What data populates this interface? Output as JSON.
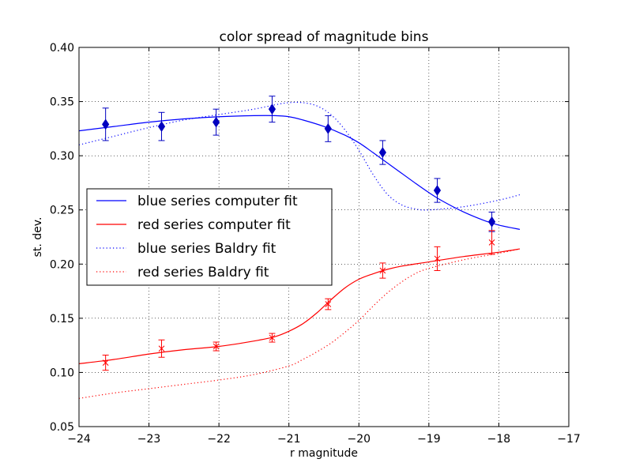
{
  "chart_data": {
    "type": "line",
    "title": "color spread of magnitude bins",
    "xlabel": "r magnitude",
    "ylabel": "st. dev.",
    "xlim": [
      -24,
      -17
    ],
    "ylim": [
      0.05,
      0.4
    ],
    "x_ticks": [
      -24,
      -23,
      -22,
      -21,
      -20,
      -19,
      -18,
      -17
    ],
    "x_tick_labels": [
      "−24",
      "−23",
      "−22",
      "−21",
      "−20",
      "−19",
      "−18",
      "−17"
    ],
    "y_ticks": [
      0.05,
      0.1,
      0.15,
      0.2,
      0.25,
      0.3,
      0.35,
      0.4
    ],
    "y_tick_labels": [
      "0.05",
      "0.10",
      "0.15",
      "0.20",
      "0.25",
      "0.30",
      "0.35",
      "0.40"
    ],
    "grid": true,
    "legend_position": "center-left",
    "colors": {
      "blue": "#0000ff",
      "red": "#ff0000",
      "blue_marker": "#0000c0",
      "red_marker": "#ff0000"
    },
    "series": [
      {
        "name": "blue series computer fit",
        "kind": "line",
        "style": "solid",
        "color": "#0000ff",
        "x": [
          -24.0,
          -23.5,
          -23.0,
          -22.5,
          -22.0,
          -21.5,
          -21.2,
          -21.0,
          -20.8,
          -20.5,
          -20.2,
          -20.0,
          -19.8,
          -19.5,
          -19.2,
          -19.0,
          -18.8,
          -18.5,
          -18.2,
          -18.0,
          -17.7
        ],
        "y": [
          0.323,
          0.327,
          0.331,
          0.334,
          0.336,
          0.337,
          0.337,
          0.336,
          0.333,
          0.327,
          0.319,
          0.312,
          0.303,
          0.289,
          0.275,
          0.266,
          0.258,
          0.248,
          0.24,
          0.236,
          0.232
        ]
      },
      {
        "name": "red series computer fit",
        "kind": "line",
        "style": "solid",
        "color": "#ff0000",
        "x": [
          -24.0,
          -23.5,
          -23.0,
          -22.5,
          -22.0,
          -21.5,
          -21.2,
          -21.0,
          -20.8,
          -20.6,
          -20.4,
          -20.2,
          -20.0,
          -19.8,
          -19.6,
          -19.4,
          -19.0,
          -18.5,
          -18.0,
          -17.7
        ],
        "y": [
          0.108,
          0.112,
          0.117,
          0.121,
          0.124,
          0.129,
          0.133,
          0.138,
          0.145,
          0.155,
          0.167,
          0.178,
          0.186,
          0.191,
          0.195,
          0.198,
          0.202,
          0.207,
          0.211,
          0.214
        ]
      },
      {
        "name": "blue series Baldry fit",
        "kind": "line",
        "style": "dotted",
        "color": "#0000ff",
        "x": [
          -24.0,
          -23.5,
          -23.0,
          -22.5,
          -22.0,
          -21.5,
          -21.2,
          -21.0,
          -20.8,
          -20.6,
          -20.4,
          -20.2,
          -20.0,
          -19.8,
          -19.6,
          -19.4,
          -19.2,
          -19.0,
          -18.5,
          -18.0,
          -17.7
        ],
        "y": [
          0.31,
          0.318,
          0.326,
          0.333,
          0.338,
          0.343,
          0.347,
          0.349,
          0.349,
          0.346,
          0.338,
          0.324,
          0.305,
          0.283,
          0.265,
          0.255,
          0.251,
          0.25,
          0.253,
          0.259,
          0.264
        ]
      },
      {
        "name": "red series Baldry fit",
        "kind": "line",
        "style": "dotted",
        "color": "#ff0000",
        "x": [
          -24.0,
          -23.5,
          -23.0,
          -22.5,
          -22.0,
          -21.5,
          -21.0,
          -20.8,
          -20.6,
          -20.4,
          -20.2,
          -20.0,
          -19.8,
          -19.6,
          -19.4,
          -19.2,
          -19.0,
          -18.5,
          -18.0,
          -17.7
        ],
        "y": [
          0.076,
          0.081,
          0.085,
          0.089,
          0.093,
          0.098,
          0.106,
          0.112,
          0.119,
          0.127,
          0.137,
          0.148,
          0.161,
          0.173,
          0.183,
          0.191,
          0.196,
          0.204,
          0.21,
          0.214
        ]
      },
      {
        "name": "blue data",
        "kind": "errorbar",
        "marker": "diamond",
        "color": "#0000c0",
        "x": [
          -23.62,
          -22.82,
          -22.04,
          -21.24,
          -20.44,
          -19.66,
          -18.88,
          -18.1
        ],
        "y": [
          0.329,
          0.327,
          0.331,
          0.343,
          0.325,
          0.303,
          0.268,
          0.239
        ],
        "err": [
          0.015,
          0.013,
          0.012,
          0.012,
          0.012,
          0.011,
          0.011,
          0.009
        ]
      },
      {
        "name": "red data",
        "kind": "errorbar",
        "marker": "x",
        "color": "#ff0000",
        "x": [
          -23.62,
          -22.82,
          -22.04,
          -21.24,
          -20.44,
          -19.66,
          -18.88,
          -18.1
        ],
        "y": [
          0.109,
          0.122,
          0.124,
          0.132,
          0.163,
          0.194,
          0.205,
          0.22
        ],
        "err": [
          0.007,
          0.008,
          0.004,
          0.004,
          0.005,
          0.007,
          0.011,
          0.011
        ]
      }
    ]
  }
}
